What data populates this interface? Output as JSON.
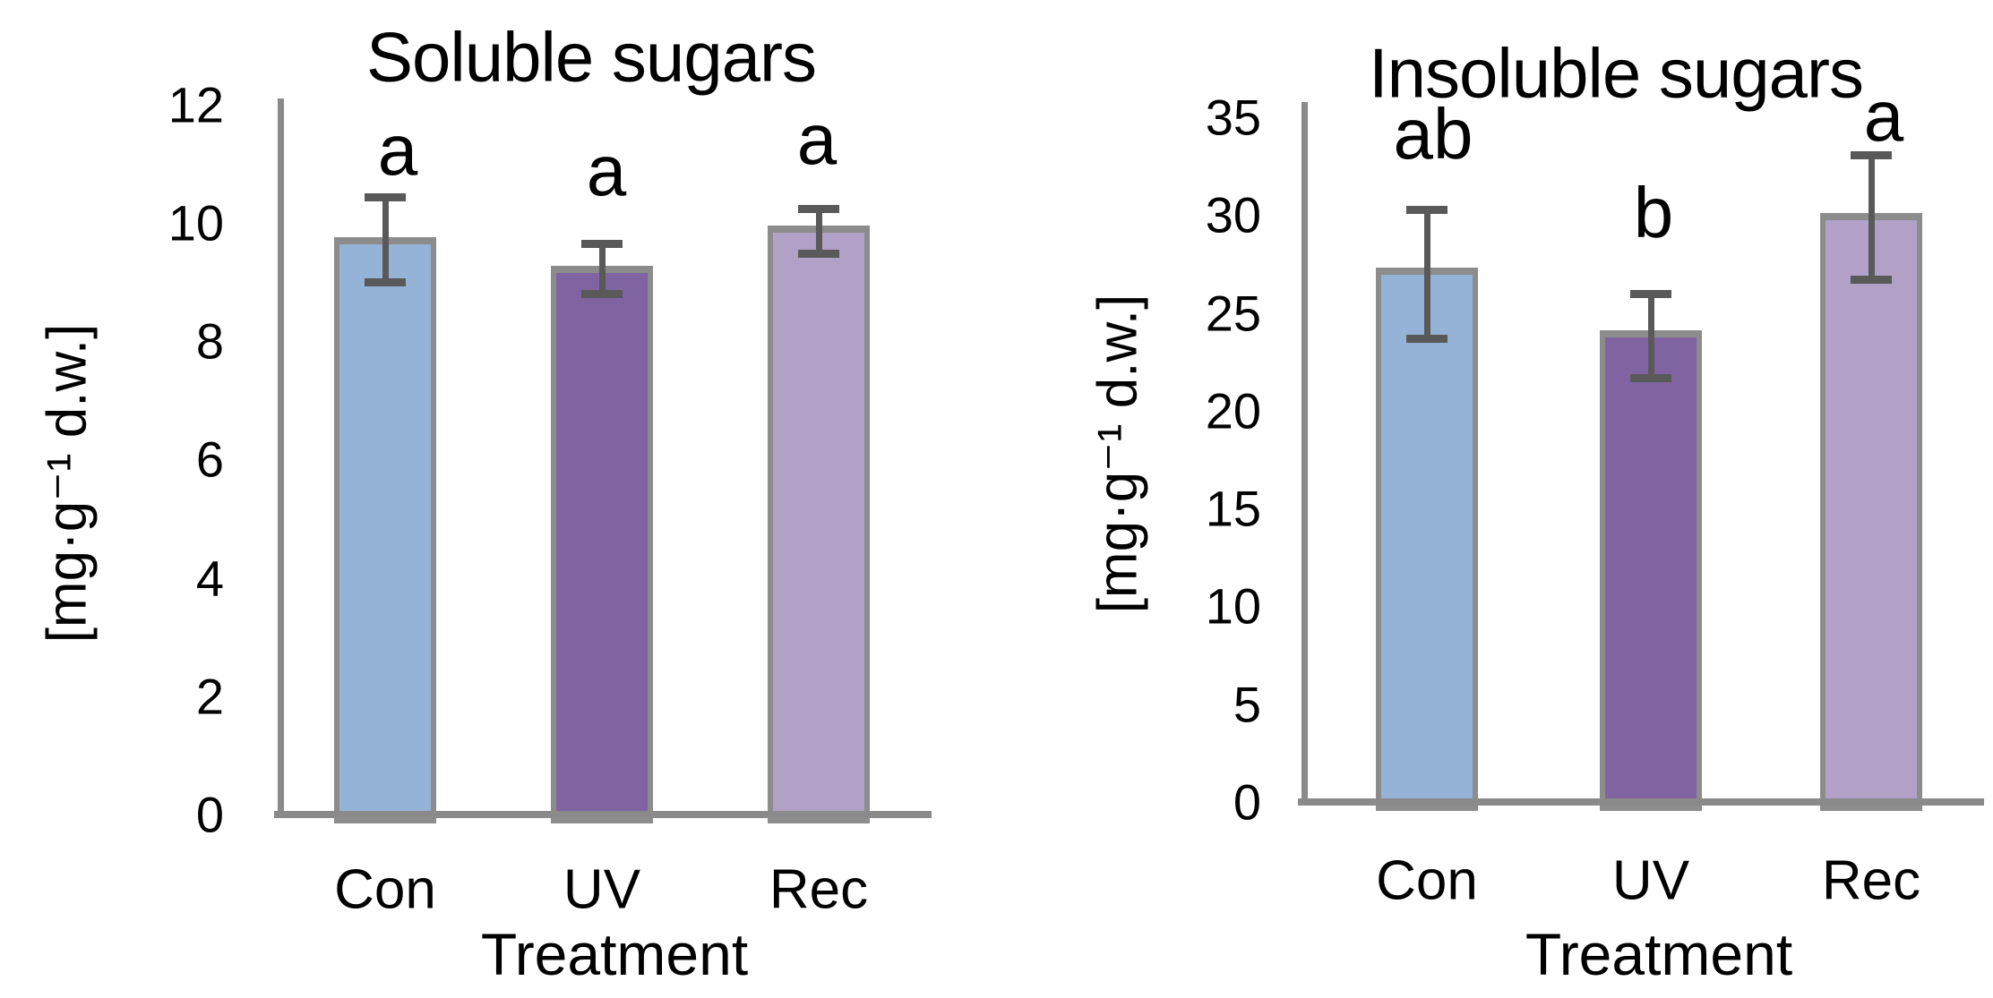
{
  "figure": {
    "background": "#FFFFFF"
  },
  "chart_data": [
    {
      "type": "bar",
      "title": "Soluble sugars",
      "xlabel": "Treatment",
      "ylabel": "[mg·g⁻¹ d.w.]",
      "categories": [
        "Con",
        "UV",
        "Rec"
      ],
      "values": [
        9.76,
        9.27,
        9.95
      ],
      "error_upper": [
        10.44,
        9.65,
        10.24
      ],
      "error_lower": [
        9.0,
        8.8,
        9.49
      ],
      "sig_letters": [
        "a",
        "a",
        "a"
      ],
      "ylim": [
        0,
        12
      ],
      "ytick_step": 2,
      "ytick_labels": [
        "0",
        "2",
        "4",
        "6",
        "8",
        "10",
        "12"
      ],
      "grid": false,
      "legend": null,
      "bar_colors": [
        "#95B3D7",
        "#8064A2",
        "#B2A1C7"
      ]
    },
    {
      "type": "bar",
      "title": "Insoluble sugars",
      "xlabel": "Treatment",
      "ylabel": "[mg·g⁻¹ d.w.]",
      "categories": [
        "Con",
        "UV",
        "Rec"
      ],
      "values": [
        27.3,
        24.1,
        30.1
      ],
      "error_upper": [
        30.3,
        26.0,
        33.1
      ],
      "error_lower": [
        23.7,
        21.7,
        26.7
      ],
      "sig_letters": [
        "ab",
        "b",
        "a"
      ],
      "ylim": [
        0,
        35
      ],
      "ytick_step": 5,
      "ytick_labels": [
        "0",
        "5",
        "10",
        "15",
        "20",
        "25",
        "30",
        "35"
      ],
      "grid": false,
      "legend": null,
      "bar_colors": [
        "#95B3D7",
        "#8064A2",
        "#B2A1C7"
      ]
    }
  ],
  "style": {
    "bar_border_color": "#8C8C8C",
    "error_bar_color": "#595959",
    "axis_color": "#8A8A8A",
    "text_color": "#000000"
  }
}
